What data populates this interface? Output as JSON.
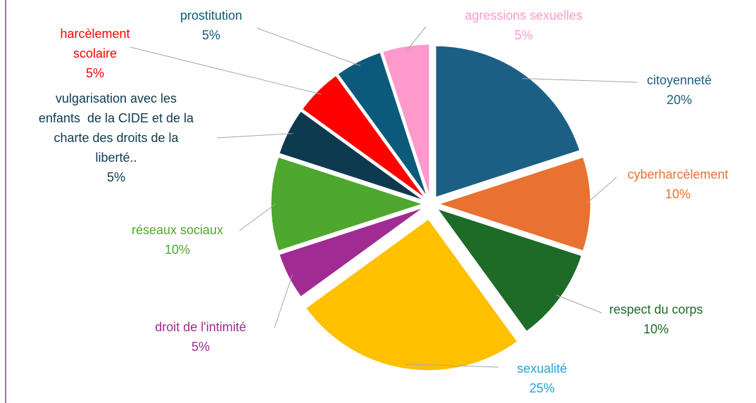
{
  "chart_data": {
    "type": "pie",
    "categories": [
      "citoyenneté",
      "cyberharcèlement",
      "respect du corps",
      "sexualité",
      "droit de l'intimité",
      "réseaux sociaux",
      "vulgarisation avec les\nenfants  de la CIDE et de la\ncharte des droits de la\nliberté..",
      "harcèlement\nscolaire",
      "prostitution",
      "agressions sexuelles"
    ],
    "values": [
      20,
      10,
      10,
      25,
      5,
      10,
      5,
      5,
      5,
      5
    ],
    "value_labels": [
      "20%",
      "10%",
      "10%",
      "25%",
      "5%",
      "10%",
      "5%",
      "5%",
      "5%",
      "5%"
    ],
    "colors": [
      "#1b5f84",
      "#e97132",
      "#1d6b27",
      "#ffc000",
      "#a02b93",
      "#4ea72e",
      "#0e3a50",
      "#ff0000",
      "#0b5a7b",
      "#ff99cc"
    ],
    "label_colors": [
      "#1b5f84",
      "#e97132",
      "#1d6b27",
      "#25a2d6",
      "#a02b93",
      "#4ea72e",
      "#0e3a50",
      "#ff0000",
      "#0b5a7b",
      "#ff99cc"
    ]
  }
}
